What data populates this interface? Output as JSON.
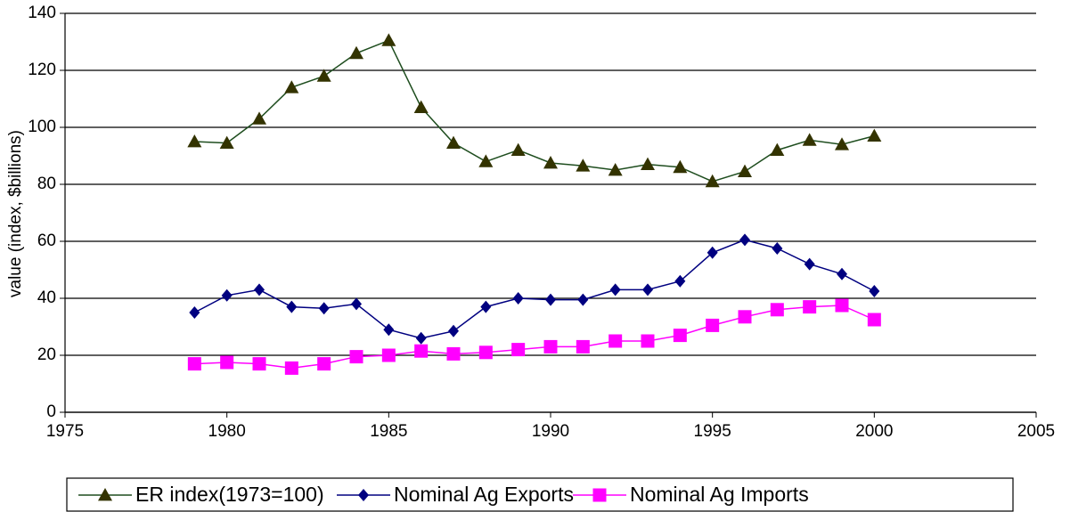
{
  "chart_data": {
    "type": "line",
    "y_label": "value (index, $billions)",
    "x": [
      1979,
      1980,
      1981,
      1982,
      1983,
      1984,
      1985,
      1986,
      1987,
      1988,
      1989,
      1990,
      1991,
      1992,
      1993,
      1994,
      1995,
      1996,
      1997,
      1998,
      1999,
      2000
    ],
    "series": [
      {
        "name": "ER index(1973=100)",
        "color": "#333300",
        "line_color": "#1e4d1e",
        "marker": "triangle",
        "values": [
          95,
          94.5,
          103,
          114,
          118,
          126,
          130.5,
          107,
          94.5,
          88,
          92,
          87.5,
          86.5,
          85,
          87,
          86,
          81,
          84.5,
          92,
          95.5,
          94,
          97
        ]
      },
      {
        "name": "Nominal Ag Exports",
        "color": "#000080",
        "line_color": "#000080",
        "marker": "diamond",
        "values": [
          35,
          41,
          43,
          37,
          36.5,
          38,
          29,
          26,
          28.5,
          37,
          40,
          39.5,
          39.5,
          43,
          43,
          46,
          56,
          60.5,
          57.5,
          52,
          48.5,
          42.5
        ]
      },
      {
        "name": "Nominal Ag Imports",
        "color": "#ff00ff",
        "line_color": "#ff00ff",
        "marker": "square",
        "values": [
          17,
          17.5,
          17,
          15.5,
          17,
          19.5,
          20,
          21.5,
          20.5,
          21,
          22,
          23,
          23,
          25,
          25,
          27,
          30.5,
          33.5,
          36,
          37,
          37.5,
          32.5
        ]
      }
    ],
    "xlim": [
      1975,
      2005
    ],
    "xticks": [
      1975,
      1980,
      1985,
      1990,
      1995,
      2000,
      2005
    ],
    "ylim": [
      0,
      140
    ],
    "yticks": [
      0,
      20,
      40,
      60,
      80,
      100,
      120,
      140
    ],
    "grid": true,
    "legend": "bottom"
  }
}
